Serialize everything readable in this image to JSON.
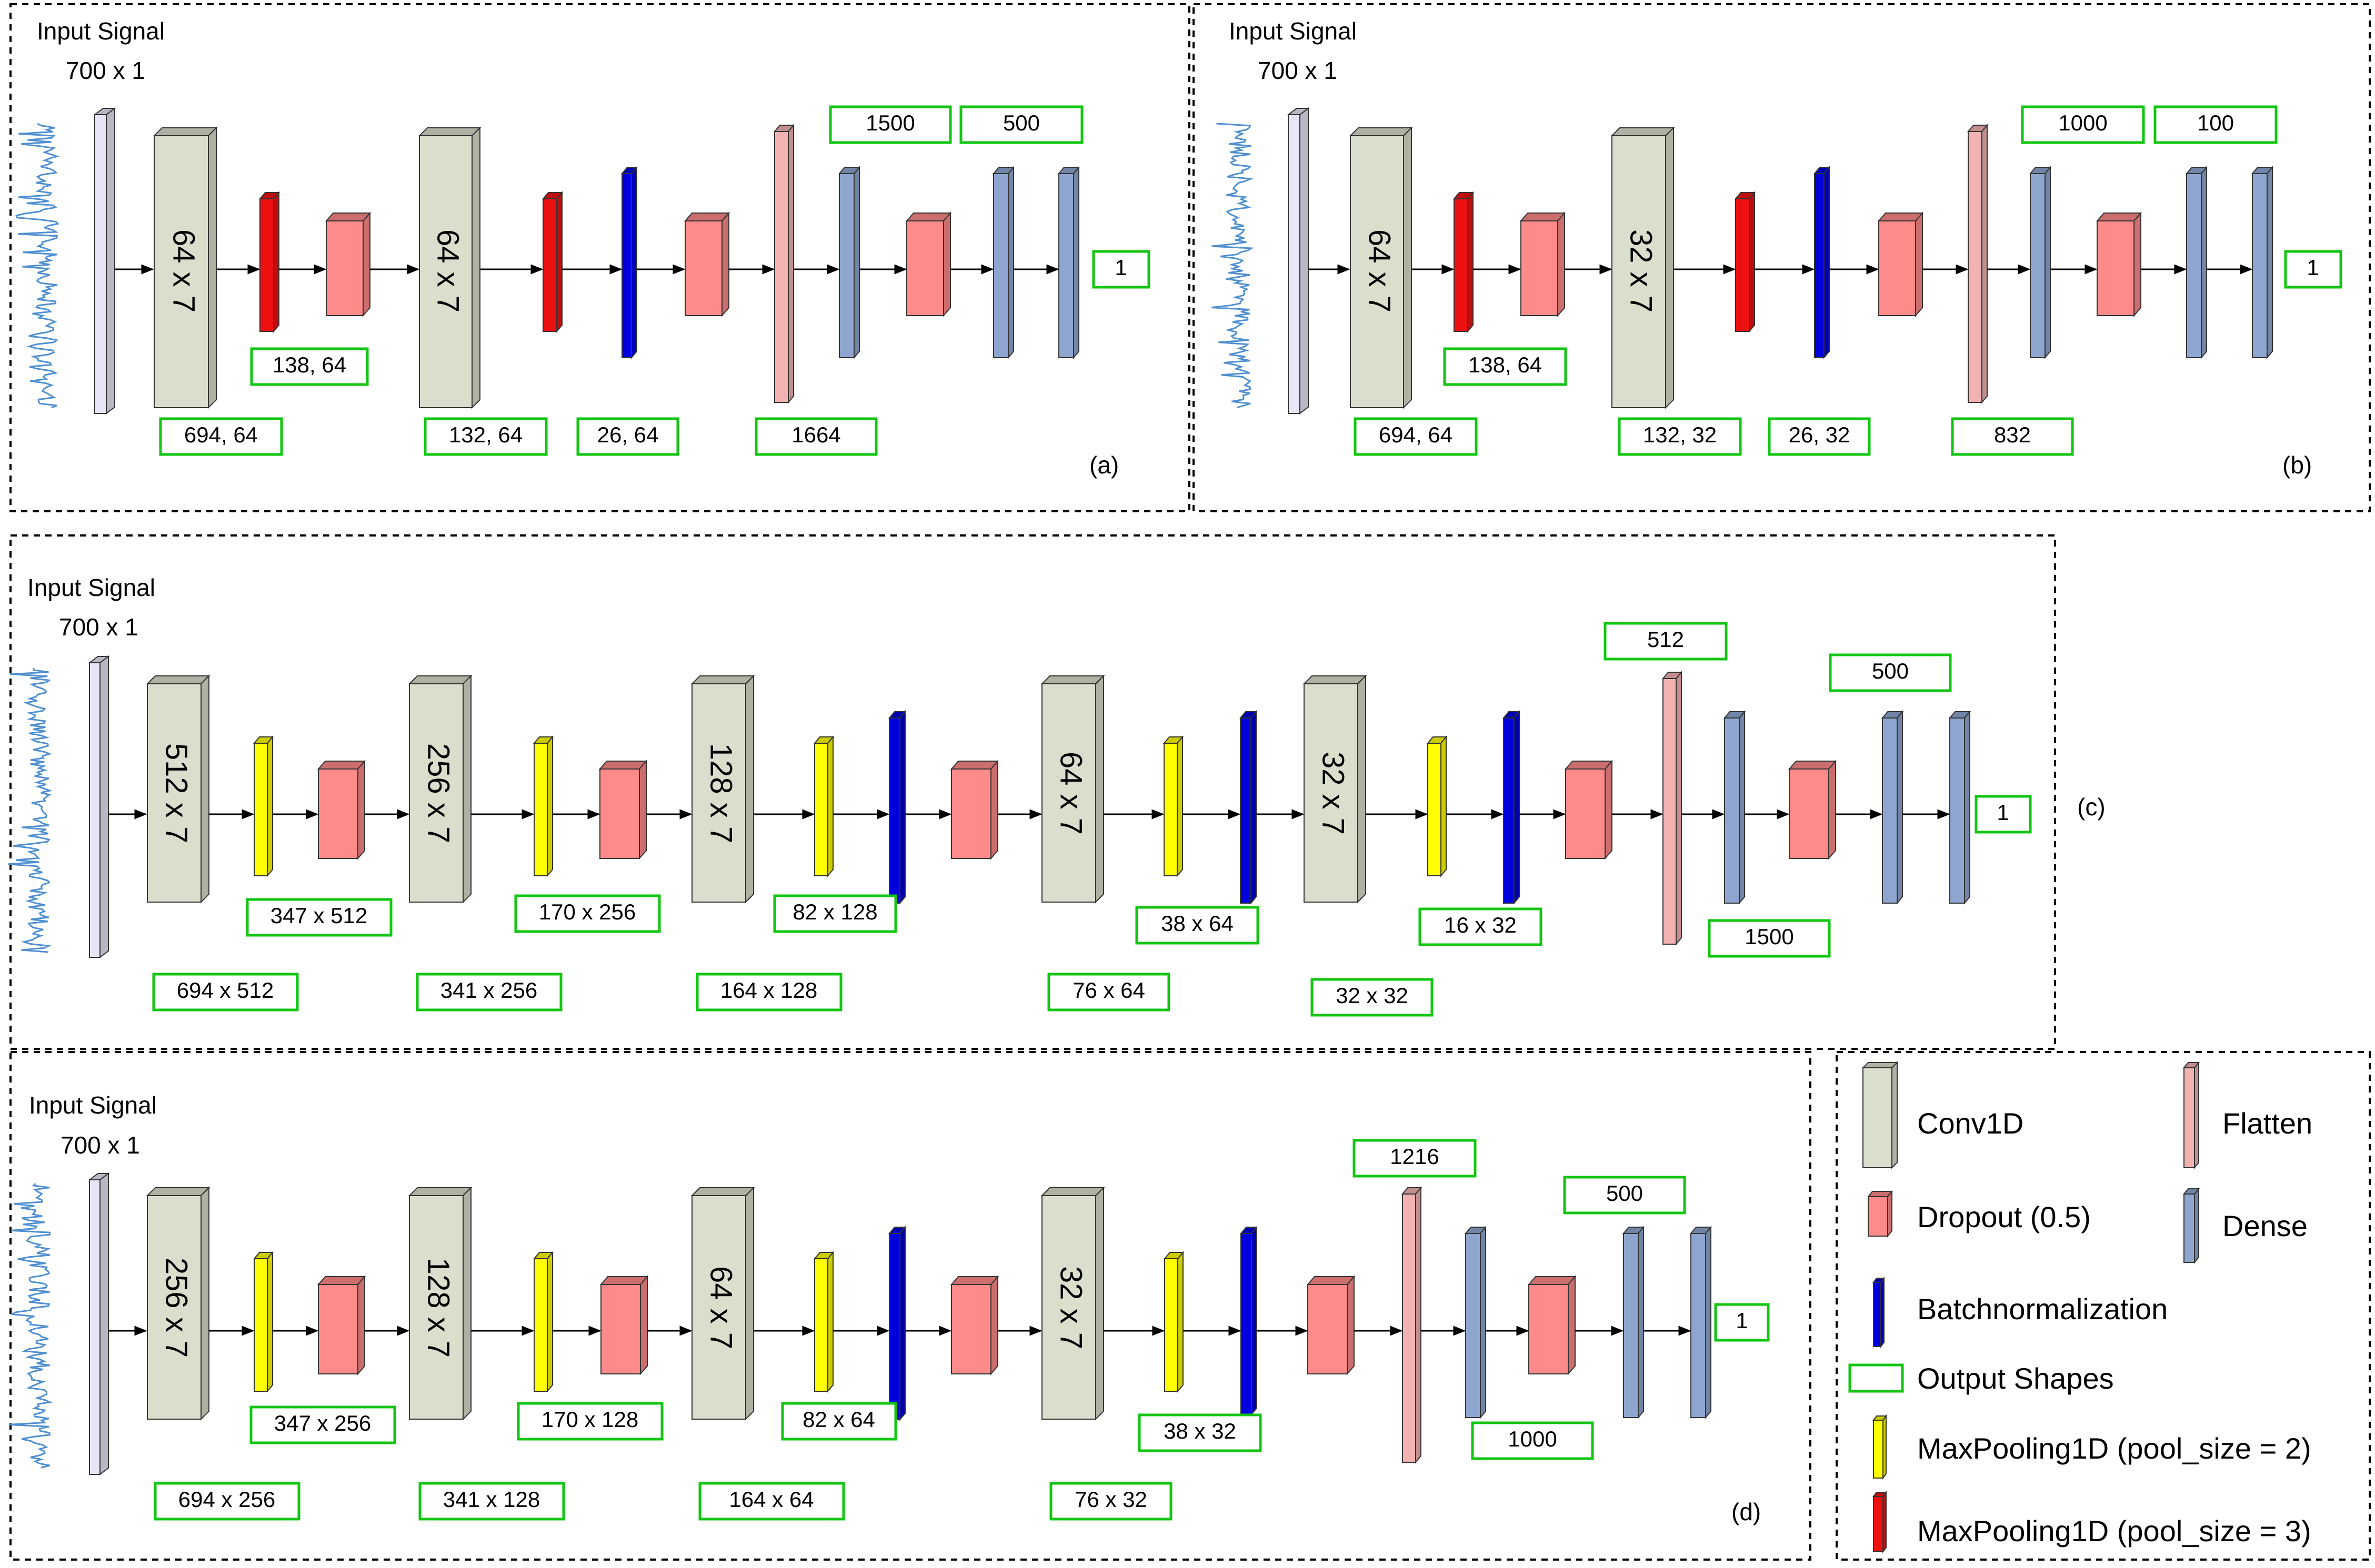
{
  "colors": {
    "input": "#e6e6f6",
    "conv": "#d9dfcc",
    "dropout": "#ff8a8a",
    "batchnorm": "#0000dd",
    "flatten": "#f3b2b2",
    "dense": "#8ea6cf",
    "pool2": "#ffff00",
    "pool3": "#ee1111",
    "shape_border": "#11c611",
    "signal": "#4f8fd0"
  },
  "panels": [
    {
      "id": "a",
      "tag": "(a)",
      "input_title": "Input Signal",
      "input_shape": "700 x 1",
      "layers": [
        {
          "kind": "conv",
          "label": "64 x 7"
        },
        {
          "kind": "pool3"
        },
        {
          "kind": "dropout"
        },
        {
          "kind": "conv",
          "label": "64 x 7"
        },
        {
          "kind": "pool3"
        },
        {
          "kind": "batchnorm"
        },
        {
          "kind": "dropout"
        },
        {
          "kind": "flatten"
        },
        {
          "kind": "dense"
        },
        {
          "kind": "dropout"
        },
        {
          "kind": "dense"
        },
        {
          "kind": "dense"
        }
      ],
      "shapes": [
        "694, 64",
        "138, 64",
        "132, 64",
        "26, 64",
        "1664",
        "1500",
        "500",
        "1"
      ]
    },
    {
      "id": "b",
      "tag": "(b)",
      "input_title": "Input Signal",
      "input_shape": "700 x 1",
      "layers": [
        {
          "kind": "conv",
          "label": "64 x 7"
        },
        {
          "kind": "pool3"
        },
        {
          "kind": "dropout"
        },
        {
          "kind": "conv",
          "label": "32 x 7"
        },
        {
          "kind": "pool3"
        },
        {
          "kind": "batchnorm"
        },
        {
          "kind": "dropout"
        },
        {
          "kind": "flatten"
        },
        {
          "kind": "dense"
        },
        {
          "kind": "dropout"
        },
        {
          "kind": "dense"
        },
        {
          "kind": "dense"
        }
      ],
      "shapes": [
        "694, 64",
        "138, 64",
        "132, 32",
        "26, 32",
        "832",
        "1000",
        "100",
        "1"
      ]
    },
    {
      "id": "c",
      "tag": "(c)",
      "input_title": "Input Signal",
      "input_shape": "700 x 1",
      "layers": [
        {
          "kind": "conv",
          "label": "512 x 7"
        },
        {
          "kind": "pool2"
        },
        {
          "kind": "dropout"
        },
        {
          "kind": "conv",
          "label": "256 x 7"
        },
        {
          "kind": "pool2"
        },
        {
          "kind": "dropout"
        },
        {
          "kind": "conv",
          "label": "128 x 7"
        },
        {
          "kind": "pool2"
        },
        {
          "kind": "batchnorm"
        },
        {
          "kind": "dropout"
        },
        {
          "kind": "conv",
          "label": "64 x 7"
        },
        {
          "kind": "pool2"
        },
        {
          "kind": "batchnorm"
        },
        {
          "kind": "conv",
          "label": "32 x 7"
        },
        {
          "kind": "pool2"
        },
        {
          "kind": "batchnorm"
        },
        {
          "kind": "dropout"
        },
        {
          "kind": "flatten"
        },
        {
          "kind": "dense"
        },
        {
          "kind": "dropout"
        },
        {
          "kind": "dense"
        },
        {
          "kind": "dense"
        }
      ],
      "shapes": [
        "694 x 512",
        "347 x 512",
        "341 x 256",
        "170 x 256",
        "164 x 128",
        "82 x 128",
        "76 x 64",
        "38 x 64",
        "32 x 32",
        "16 x 32",
        "512",
        "1500",
        "500",
        "1"
      ]
    },
    {
      "id": "d",
      "tag": "(d)",
      "input_title": "Input Signal",
      "input_shape": "700 x 1",
      "layers": [
        {
          "kind": "conv",
          "label": "256 x 7"
        },
        {
          "kind": "pool2"
        },
        {
          "kind": "dropout"
        },
        {
          "kind": "conv",
          "label": "128 x 7"
        },
        {
          "kind": "pool2"
        },
        {
          "kind": "dropout"
        },
        {
          "kind": "conv",
          "label": "64 x 7"
        },
        {
          "kind": "pool2"
        },
        {
          "kind": "batchnorm"
        },
        {
          "kind": "dropout"
        },
        {
          "kind": "conv",
          "label": "32 x 7"
        },
        {
          "kind": "pool2"
        },
        {
          "kind": "batchnorm"
        },
        {
          "kind": "dropout"
        },
        {
          "kind": "flatten"
        },
        {
          "kind": "dense"
        },
        {
          "kind": "dropout"
        },
        {
          "kind": "dense"
        },
        {
          "kind": "dense"
        }
      ],
      "shapes": [
        "694 x 256",
        "347 x 256",
        "341 x 128",
        "170 x 128",
        "164 x 64",
        "82 x 64",
        "76 x 32",
        "38 x 32",
        "1216",
        "1000",
        "500",
        "1"
      ]
    }
  ],
  "legend": {
    "items": [
      {
        "kind": "conv",
        "label": "Conv1D"
      },
      {
        "kind": "flatten",
        "label": "Flatten"
      },
      {
        "kind": "dropout",
        "label": "Dropout (0.5)"
      },
      {
        "kind": "dense",
        "label": "Dense"
      },
      {
        "kind": "batchnorm",
        "label": "Batchnormalization"
      },
      {
        "kind": "shape",
        "label": "Output Shapes"
      },
      {
        "kind": "pool2",
        "label": "MaxPooling1D (pool_size = 2)"
      },
      {
        "kind": "pool3",
        "label": "MaxPooling1D (pool_size = 3)"
      }
    ]
  }
}
